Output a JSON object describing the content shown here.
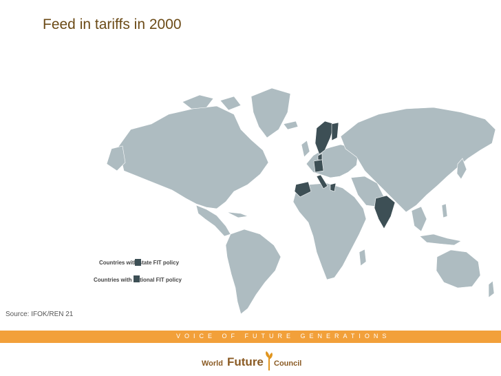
{
  "title": "Feed in tariffs in 2000",
  "legend": {
    "state": "Countries with state FIT policy",
    "national": "Countries with national FIT policy"
  },
  "source": "Source: IFOK/REN 21",
  "band_text": "VOICE OF FUTURE GENERATIONS",
  "logo": {
    "world": "World",
    "future": "Future",
    "council": "Council"
  },
  "colors": {
    "land": "#aebcc1",
    "highlight": "#3d4f55",
    "band": "#f2a03a",
    "title": "#6b4a16",
    "logo": "#8a5a23"
  },
  "highlighted_countries": [
    "Norway",
    "Sweden",
    "Finland",
    "Denmark",
    "Germany",
    "Spain",
    "Italy",
    "Greece",
    "India"
  ]
}
